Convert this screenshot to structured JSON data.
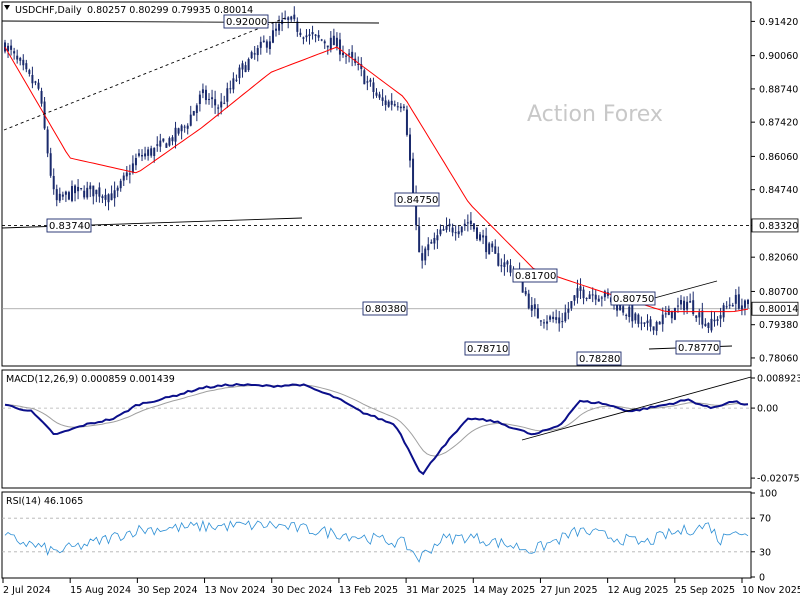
{
  "header": {
    "symbol": "USDCHF,Daily",
    "ohlc": "0.80257 0.80299 0.79935 0.80014"
  },
  "watermark": "Action Forex",
  "colors": {
    "candle": "#1a2a6c",
    "ma": "#ff0000",
    "macd": "#0b0f8a",
    "signal": "#a0a0a0",
    "rsi": "#2d8fd5",
    "grid": "#b0b0b0",
    "watermark": "#c8c8c8"
  },
  "chart_data": [
    {
      "type": "line",
      "panel": "price",
      "y_ticks": [
        "0.91420",
        "0.90060",
        "0.88740",
        "0.87420",
        "0.86060",
        "0.84740",
        "0.83320",
        "0.82060",
        "0.80700",
        "0.80014",
        "0.79380",
        "0.78060"
      ],
      "ylim": [
        0.7778,
        0.9215
      ],
      "x_ticks": [
        "2 Jul 2024",
        "15 Aug 2024",
        "30 Sep 2024",
        "13 Nov 2024",
        "30 Dec 2024",
        "13 Feb 2025",
        "31 Mar 2025",
        "14 May 2025",
        "27 Jun 2025",
        "12 Aug 2025",
        "25 Sep 2025",
        "10 Nov 2025"
      ],
      "last_price": "0.80014",
      "level_line": "0.83320",
      "annotations": [
        "0.92000",
        "0.83740",
        "0.84750",
        "0.80380",
        "0.81700",
        "0.78710",
        "0.78280",
        "0.80750",
        "0.78770"
      ],
      "close_series": [
        [
          "2 Jul 2024",
          0.905
        ],
        [
          "15 Jul 2024",
          0.894
        ],
        [
          "25 Jul 2024",
          0.887
        ],
        [
          "5 Aug 2024",
          0.842
        ],
        [
          "15 Aug 2024",
          0.846
        ],
        [
          "30 Aug 2024",
          0.847
        ],
        [
          "15 Sep 2024",
          0.845
        ],
        [
          "30 Sep 2024",
          0.86
        ],
        [
          "15 Oct 2024",
          0.864
        ],
        [
          "1 Nov 2024",
          0.872
        ],
        [
          "13 Nov 2024",
          0.885
        ],
        [
          "25 Nov 2024",
          0.88
        ],
        [
          "10 Dec 2024",
          0.895
        ],
        [
          "30 Dec 2024",
          0.908
        ],
        [
          "10 Jan 2025",
          0.915
        ],
        [
          "25 Jan 2025",
          0.908
        ],
        [
          "13 Feb 2025",
          0.905
        ],
        [
          "28 Feb 2025",
          0.895
        ],
        [
          "15 Mar 2025",
          0.882
        ],
        [
          "31 Mar 2025",
          0.882
        ],
        [
          "10 Apr 2025",
          0.82
        ],
        [
          "25 Apr 2025",
          0.83
        ],
        [
          "14 May 2025",
          0.835
        ],
        [
          "1 Jun 2025",
          0.82
        ],
        [
          "15 Jun 2025",
          0.815
        ],
        [
          "27 Jun 2025",
          0.798
        ],
        [
          "15 Jul 2025",
          0.795
        ],
        [
          "28 Jul 2025",
          0.807
        ],
        [
          "12 Aug 2025",
          0.806
        ],
        [
          "1 Sep 2025",
          0.798
        ],
        [
          "10 Sep 2025",
          0.792
        ],
        [
          "25 Sep 2025",
          0.797
        ],
        [
          "10 Oct 2025",
          0.803
        ],
        [
          "25 Oct 2025",
          0.793
        ],
        [
          "10 Nov 2025",
          0.804
        ],
        [
          "20 Nov 2025",
          0.8001
        ]
      ],
      "ma_series": [
        [
          "2 Jul 2024",
          0.904
        ],
        [
          "15 Aug 2024",
          0.86
        ],
        [
          "30 Sep 2024",
          0.854
        ],
        [
          "13 Nov 2024",
          0.872
        ],
        [
          "30 Dec 2024",
          0.894
        ],
        [
          "13 Feb 2025",
          0.904
        ],
        [
          "31 Mar 2025",
          0.884
        ],
        [
          "14 May 2025",
          0.842
        ],
        [
          "27 Jun 2025",
          0.816
        ],
        [
          "12 Aug 2025",
          0.807
        ],
        [
          "25 Sep 2025",
          0.799
        ],
        [
          "10 Nov 2025",
          0.799
        ],
        [
          "20 Nov 2025",
          0.8
        ]
      ]
    },
    {
      "type": "line",
      "panel": "macd",
      "title": "MACD(12,26,9) 0.000859 0.001439",
      "y_ticks": [
        "0.008923",
        "0.00",
        "-0.020759"
      ],
      "ylim": [
        -0.0234,
        0.011
      ]
    },
    {
      "type": "line",
      "panel": "rsi",
      "title": "RSI(14) 46.1065",
      "y_ticks": [
        "100",
        "70",
        "30",
        "0"
      ],
      "ylim": [
        0,
        100
      ]
    }
  ]
}
